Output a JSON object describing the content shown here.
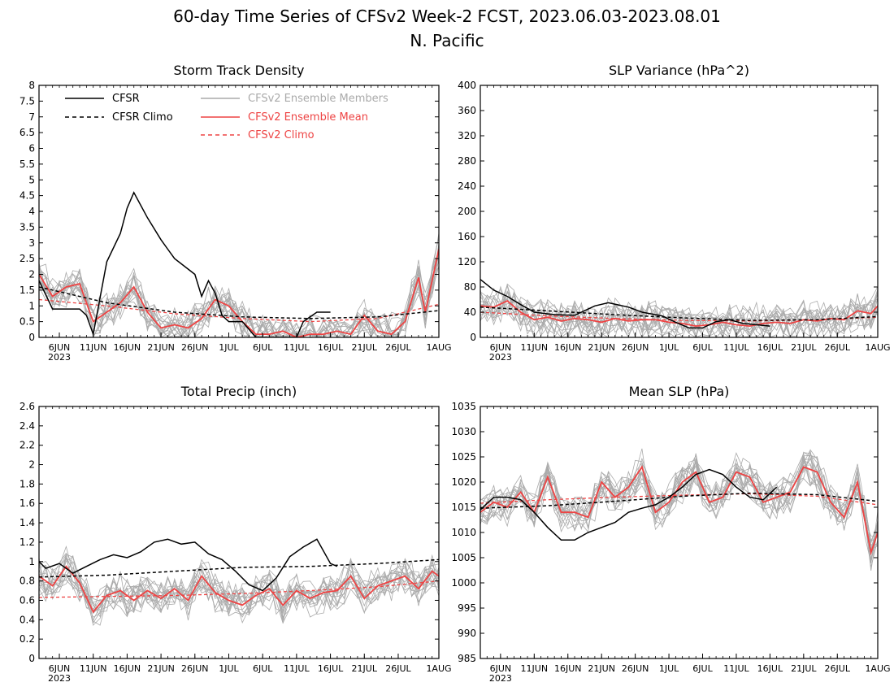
{
  "figure": {
    "title": "60-day Time Series of CFSv2 Week-2 FCST, 2023.06.03-2023.08.01",
    "subtitle": "N. Pacific"
  },
  "legend": {
    "cfsr": "CFSR",
    "cfsr_climo": "CFSR Climo",
    "ens_members": "CFSv2 Ensemble Members",
    "ens_mean": "CFSv2 Ensemble Mean",
    "cfsv2_climo": "CFSv2 Climo"
  },
  "colors": {
    "cfsr": "#000000",
    "members": "#aaaaaa",
    "ens_mean": "#ee4444",
    "cfsv2_climo": "#ee4444"
  },
  "chart_data": [
    {
      "type": "line",
      "title": "Storm Track Density",
      "x_ticks": [
        "6JUN",
        "11JUN",
        "16JUN",
        "21JUN",
        "26JUN",
        "1JUL",
        "6JUL",
        "11JUL",
        "16JUL",
        "21JUL",
        "26JUL",
        "1AUG"
      ],
      "x_year": "2023",
      "ylim": [
        0,
        8
      ],
      "y_ticks": [
        "0",
        "0.5",
        "1",
        "1.5",
        "2",
        "2.5",
        "3",
        "3.5",
        "4",
        "4.5",
        "5",
        "5.5",
        "6",
        "6.5",
        "7",
        "7.5",
        "8"
      ],
      "series": [
        {
          "name": "CFSR",
          "x": [
            "2023-06-03",
            "2023-06-05",
            "2023-06-09",
            "2023-06-10",
            "2023-06-11",
            "2023-06-13",
            "2023-06-15",
            "2023-06-16",
            "2023-06-17",
            "2023-06-19",
            "2023-06-21",
            "2023-06-22",
            "2023-06-23",
            "2023-06-26",
            "2023-06-27",
            "2023-06-28",
            "2023-06-29",
            "2023-06-30",
            "2023-07-01",
            "2023-07-03",
            "2023-07-05",
            "2023-07-09",
            "2023-07-11",
            "2023-07-12",
            "2023-07-14",
            "2023-07-15",
            "2023-07-16"
          ],
          "y": [
            1.8,
            0.9,
            0.9,
            0.7,
            0.1,
            2.4,
            3.3,
            4.1,
            4.6,
            3.8,
            3.1,
            2.8,
            2.5,
            2.0,
            1.3,
            1.8,
            1.4,
            0.7,
            0.5,
            0.5,
            0.0,
            0.0,
            0.0,
            0.5,
            0.8,
            0.8,
            0.8
          ]
        },
        {
          "name": "CFSR Climo",
          "x": [
            "2023-06-03",
            "2023-06-13",
            "2023-06-23",
            "2023-07-03",
            "2023-07-13",
            "2023-07-23",
            "2023-08-01"
          ],
          "y": [
            1.6,
            1.1,
            0.8,
            0.65,
            0.6,
            0.65,
            0.85
          ]
        },
        {
          "name": "CFSv2 Ensemble Mean",
          "x": [
            "2023-06-03",
            "2023-06-05",
            "2023-06-07",
            "2023-06-09",
            "2023-06-11",
            "2023-06-13",
            "2023-06-15",
            "2023-06-17",
            "2023-06-19",
            "2023-06-21",
            "2023-06-23",
            "2023-06-25",
            "2023-06-27",
            "2023-06-29",
            "2023-07-01",
            "2023-07-03",
            "2023-07-05",
            "2023-07-07",
            "2023-07-09",
            "2023-07-11",
            "2023-07-13",
            "2023-07-15",
            "2023-07-17",
            "2023-07-19",
            "2023-07-21",
            "2023-07-23",
            "2023-07-25",
            "2023-07-27",
            "2023-07-29",
            "2023-07-30",
            "2023-08-01"
          ],
          "y": [
            2.0,
            1.3,
            1.6,
            1.7,
            0.5,
            0.8,
            1.1,
            1.6,
            0.8,
            0.3,
            0.4,
            0.3,
            0.6,
            1.2,
            1.0,
            0.5,
            0.1,
            0.1,
            0.2,
            0.0,
            0.1,
            0.1,
            0.2,
            0.1,
            0.7,
            0.2,
            0.1,
            0.5,
            1.9,
            0.8,
            2.8
          ]
        },
        {
          "name": "CFSv2 Climo",
          "x": [
            "2023-06-03",
            "2023-06-13",
            "2023-06-23",
            "2023-07-03",
            "2023-07-13",
            "2023-07-23",
            "2023-08-01"
          ],
          "y": [
            1.2,
            1.0,
            0.75,
            0.6,
            0.5,
            0.6,
            1.05
          ]
        }
      ]
    },
    {
      "type": "line",
      "title": "SLP Variance (hPa^2)",
      "x_ticks": [
        "6JUN",
        "11JUN",
        "16JUN",
        "21JUN",
        "26JUN",
        "1JUL",
        "6JUL",
        "11JUL",
        "16JUL",
        "21JUL",
        "26JUL",
        "1AUG"
      ],
      "x_year": "2023",
      "ylim": [
        0,
        400
      ],
      "y_ticks": [
        "0",
        "40",
        "80",
        "120",
        "160",
        "200",
        "240",
        "280",
        "320",
        "360",
        "400"
      ],
      "series": [
        {
          "name": "CFSR",
          "x": [
            "2023-06-03",
            "2023-06-05",
            "2023-06-07",
            "2023-06-09",
            "2023-06-11",
            "2023-06-14",
            "2023-06-17",
            "2023-06-20",
            "2023-06-22",
            "2023-06-25",
            "2023-06-27",
            "2023-06-30",
            "2023-07-02",
            "2023-07-04",
            "2023-07-06",
            "2023-07-08",
            "2023-07-10",
            "2023-07-12",
            "2023-07-14",
            "2023-07-16"
          ],
          "y": [
            92,
            75,
            65,
            52,
            40,
            36,
            35,
            50,
            55,
            48,
            40,
            34,
            24,
            15,
            15,
            25,
            28,
            22,
            20,
            18
          ]
        },
        {
          "name": "CFSR Climo",
          "x": [
            "2023-06-03",
            "2023-06-13",
            "2023-06-23",
            "2023-07-03",
            "2023-07-13",
            "2023-07-23",
            "2023-08-01"
          ],
          "y": [
            48,
            42,
            36,
            31,
            27,
            28,
            33
          ]
        },
        {
          "name": "CFSv2 Ensemble Mean",
          "x": [
            "2023-06-03",
            "2023-06-05",
            "2023-06-07",
            "2023-06-09",
            "2023-06-11",
            "2023-06-13",
            "2023-06-15",
            "2023-06-17",
            "2023-06-19",
            "2023-06-21",
            "2023-06-23",
            "2023-06-25",
            "2023-06-27",
            "2023-06-29",
            "2023-07-01",
            "2023-07-03",
            "2023-07-05",
            "2023-07-07",
            "2023-07-09",
            "2023-07-11",
            "2023-07-13",
            "2023-07-15",
            "2023-07-17",
            "2023-07-19",
            "2023-07-21",
            "2023-07-23",
            "2023-07-25",
            "2023-07-27",
            "2023-07-29",
            "2023-07-31",
            "2023-08-01"
          ],
          "y": [
            50,
            48,
            58,
            40,
            28,
            32,
            26,
            30,
            28,
            24,
            30,
            26,
            28,
            28,
            24,
            22,
            18,
            20,
            24,
            20,
            18,
            22,
            24,
            22,
            28,
            26,
            30,
            28,
            42,
            38,
            50
          ]
        },
        {
          "name": "CFSv2 Climo",
          "x": [
            "2023-06-03",
            "2023-06-13",
            "2023-06-23",
            "2023-07-03",
            "2023-07-13",
            "2023-07-23",
            "2023-08-01"
          ],
          "y": [
            40,
            34,
            30,
            27,
            26,
            28,
            32
          ]
        }
      ]
    },
    {
      "type": "line",
      "title": "Total Precip (inch)",
      "x_ticks": [
        "6JUN",
        "11JUN",
        "16JUN",
        "21JUN",
        "26JUN",
        "1JUL",
        "6JUL",
        "11JUL",
        "16JUL",
        "21JUL",
        "26JUL",
        "1AUG"
      ],
      "x_year": "2023",
      "ylim": [
        0,
        2.6
      ],
      "y_ticks": [
        "0",
        "0.2",
        "0.4",
        "0.6",
        "0.8",
        "1",
        "1.2",
        "1.4",
        "1.6",
        "1.8",
        "2",
        "2.2",
        "2.4",
        "2.6"
      ],
      "series": [
        {
          "name": "CFSR",
          "x": [
            "2023-06-03",
            "2023-06-04",
            "2023-06-06",
            "2023-06-08",
            "2023-06-10",
            "2023-06-12",
            "2023-06-14",
            "2023-06-16",
            "2023-06-18",
            "2023-06-20",
            "2023-06-22",
            "2023-06-24",
            "2023-06-26",
            "2023-06-28",
            "2023-06-30",
            "2023-07-02",
            "2023-07-04",
            "2023-07-06",
            "2023-07-08",
            "2023-07-10",
            "2023-07-12",
            "2023-07-14",
            "2023-07-16",
            "2023-07-17"
          ],
          "y": [
            1.0,
            0.93,
            0.98,
            0.88,
            0.95,
            1.02,
            1.07,
            1.04,
            1.1,
            1.2,
            1.23,
            1.18,
            1.2,
            1.08,
            1.02,
            0.9,
            0.76,
            0.7,
            0.83,
            1.05,
            1.15,
            1.23,
            0.98,
            0.95
          ]
        },
        {
          "name": "CFSR Climo",
          "x": [
            "2023-06-03",
            "2023-06-13",
            "2023-06-23",
            "2023-07-03",
            "2023-07-13",
            "2023-07-23",
            "2023-08-01"
          ],
          "y": [
            0.84,
            0.86,
            0.9,
            0.94,
            0.95,
            0.98,
            1.02
          ]
        },
        {
          "name": "CFSv2 Ensemble Mean",
          "x": [
            "2023-06-03",
            "2023-06-05",
            "2023-06-07",
            "2023-06-09",
            "2023-06-11",
            "2023-06-13",
            "2023-06-15",
            "2023-06-17",
            "2023-06-19",
            "2023-06-21",
            "2023-06-23",
            "2023-06-25",
            "2023-06-27",
            "2023-06-29",
            "2023-07-01",
            "2023-07-03",
            "2023-07-05",
            "2023-07-07",
            "2023-07-09",
            "2023-07-11",
            "2023-07-13",
            "2023-07-15",
            "2023-07-17",
            "2023-07-19",
            "2023-07-21",
            "2023-07-23",
            "2023-07-25",
            "2023-07-27",
            "2023-07-29",
            "2023-07-31",
            "2023-08-01"
          ],
          "y": [
            0.85,
            0.75,
            0.95,
            0.78,
            0.48,
            0.65,
            0.7,
            0.6,
            0.7,
            0.62,
            0.72,
            0.6,
            0.85,
            0.68,
            0.6,
            0.55,
            0.65,
            0.72,
            0.55,
            0.7,
            0.62,
            0.68,
            0.7,
            0.85,
            0.62,
            0.75,
            0.8,
            0.85,
            0.72,
            0.9,
            0.85
          ]
        },
        {
          "name": "CFSv2 Climo",
          "x": [
            "2023-06-03",
            "2023-06-13",
            "2023-06-23",
            "2023-07-03",
            "2023-07-13",
            "2023-07-23",
            "2023-08-01"
          ],
          "y": [
            0.63,
            0.64,
            0.65,
            0.67,
            0.7,
            0.74,
            0.8
          ]
        }
      ]
    },
    {
      "type": "line",
      "title": "Mean SLP (hPa)",
      "x_ticks": [
        "6JUN",
        "11JUN",
        "16JUN",
        "21JUN",
        "26JUN",
        "1JUL",
        "6JUL",
        "11JUL",
        "16JUL",
        "21JUL",
        "26JUL",
        "1AUG"
      ],
      "x_year": "2023",
      "ylim": [
        985,
        1035
      ],
      "y_ticks": [
        "985",
        "990",
        "995",
        "1000",
        "1005",
        "1010",
        "1015",
        "1020",
        "1025",
        "1030",
        "1035"
      ],
      "series": [
        {
          "name": "CFSR",
          "x": [
            "2023-06-03",
            "2023-06-05",
            "2023-06-07",
            "2023-06-09",
            "2023-06-11",
            "2023-06-13",
            "2023-06-15",
            "2023-06-17",
            "2023-06-19",
            "2023-06-21",
            "2023-06-23",
            "2023-06-25",
            "2023-06-27",
            "2023-06-29",
            "2023-07-01",
            "2023-07-03",
            "2023-07-05",
            "2023-07-07",
            "2023-07-09",
            "2023-07-11",
            "2023-07-13",
            "2023-07-15",
            "2023-07-17"
          ],
          "y": [
            1014.5,
            1017,
            1017,
            1016.5,
            1014,
            1011,
            1008.5,
            1008.5,
            1010,
            1011,
            1012,
            1014,
            1014.8,
            1015.5,
            1017,
            1019,
            1021.5,
            1022.5,
            1021.5,
            1019,
            1017,
            1016.5,
            1019
          ]
        },
        {
          "name": "CFSR Climo",
          "x": [
            "2023-06-03",
            "2023-06-13",
            "2023-06-23",
            "2023-07-03",
            "2023-07-13",
            "2023-07-23",
            "2023-08-01"
          ],
          "y": [
            1014.8,
            1015.3,
            1016.2,
            1017.2,
            1017.8,
            1017.5,
            1016.2
          ]
        },
        {
          "name": "CFSv2 Ensemble Mean",
          "x": [
            "2023-06-03",
            "2023-06-05",
            "2023-06-07",
            "2023-06-09",
            "2023-06-11",
            "2023-06-13",
            "2023-06-15",
            "2023-06-17",
            "2023-06-19",
            "2023-06-21",
            "2023-06-23",
            "2023-06-25",
            "2023-06-27",
            "2023-06-29",
            "2023-07-01",
            "2023-07-03",
            "2023-07-05",
            "2023-07-07",
            "2023-07-09",
            "2023-07-11",
            "2023-07-13",
            "2023-07-15",
            "2023-07-17",
            "2023-07-19",
            "2023-07-21",
            "2023-07-23",
            "2023-07-25",
            "2023-07-27",
            "2023-07-29",
            "2023-07-31",
            "2023-08-01"
          ],
          "y": [
            1014,
            1016,
            1015,
            1018,
            1014,
            1021,
            1014,
            1014,
            1013,
            1020,
            1017,
            1019,
            1023,
            1014,
            1016,
            1020,
            1022,
            1016,
            1017,
            1022,
            1021,
            1016,
            1017,
            1018,
            1023,
            1022,
            1016,
            1013,
            1020,
            1006,
            1010
          ]
        },
        {
          "name": "CFSv2 Climo",
          "x": [
            "2023-06-03",
            "2023-06-13",
            "2023-06-23",
            "2023-07-03",
            "2023-07-13",
            "2023-07-23",
            "2023-08-01"
          ],
          "y": [
            1015.8,
            1016.5,
            1017,
            1017.4,
            1017.7,
            1017.2,
            1015.5
          ]
        }
      ]
    }
  ]
}
